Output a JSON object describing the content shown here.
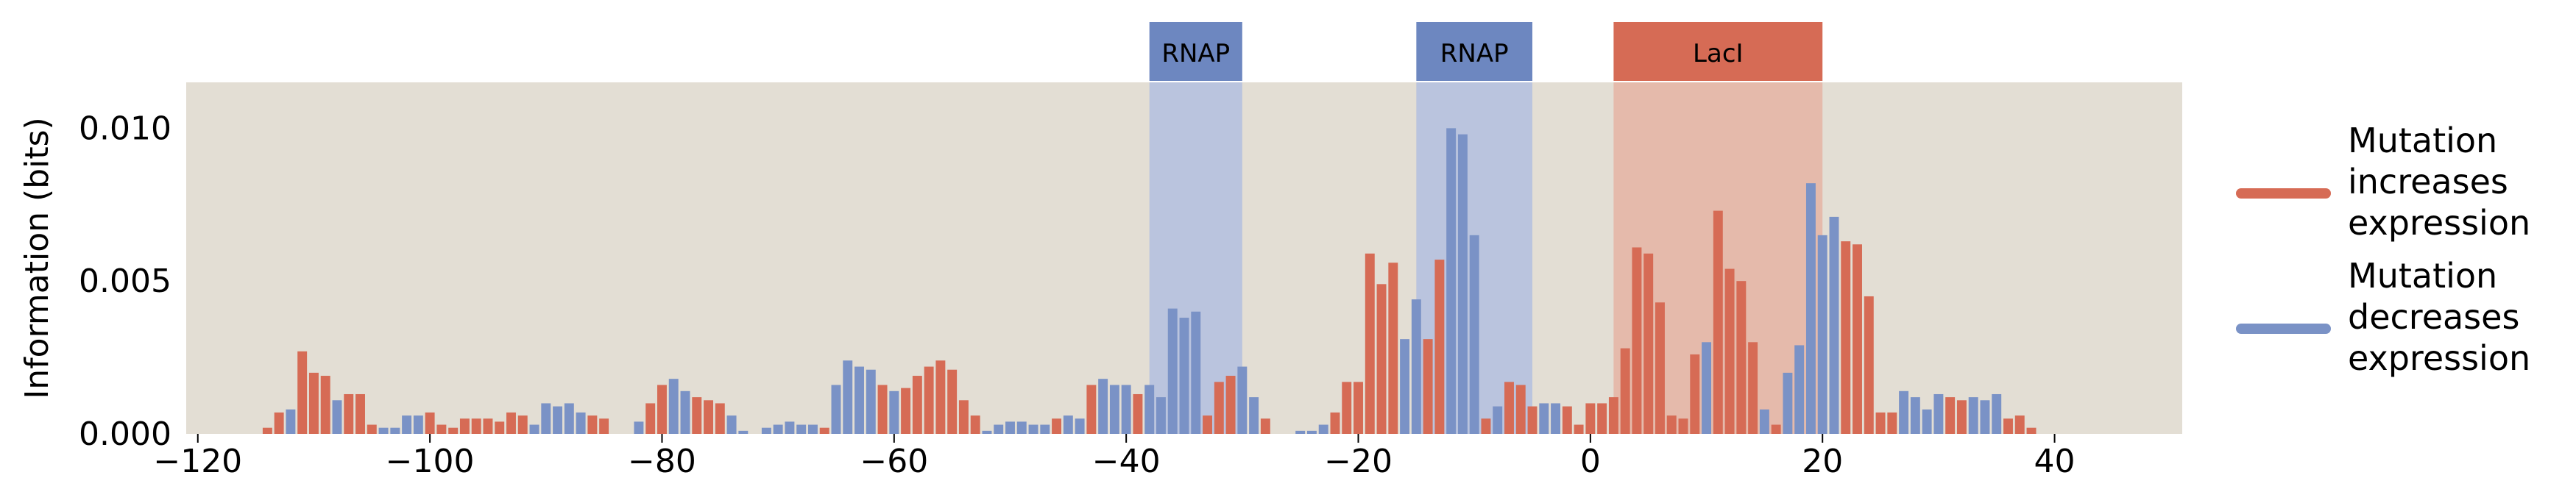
{
  "colors": {
    "background": "#e3ded4",
    "increase": "#d66b55",
    "decrease": "#7a92c6",
    "rnap_box": "#6d87c0",
    "rnap_shade": "#aebde0",
    "laci_box": "#d66b55",
    "laci_shade": "#e6b09f"
  },
  "chart_data": {
    "type": "bar",
    "ylabel": "Information (bits)",
    "xlim": [
      -121,
      51
    ],
    "ylim": [
      0,
      0.0115
    ],
    "xticks": [
      -120,
      -100,
      -80,
      -60,
      -40,
      -20,
      0,
      20,
      40
    ],
    "xtick_labels": [
      "−120",
      "−100",
      "−80",
      "−60",
      "−40",
      "−20",
      "0",
      "20",
      "40"
    ],
    "yticks": [
      0,
      0.005,
      0.01
    ],
    "ytick_labels": [
      "0.000",
      "0.005",
      "0.010"
    ],
    "grid": false,
    "legend_position": "right",
    "regions": [
      {
        "label": "RNAP",
        "kind": "rnap",
        "start": -38,
        "end": -30
      },
      {
        "label": "RNAP",
        "kind": "rnap",
        "start": -15,
        "end": -5
      },
      {
        "label": "LacI",
        "kind": "laci",
        "start": 2,
        "end": 20
      }
    ],
    "series": [
      {
        "name": "Mutation increases expression",
        "key": "increase"
      },
      {
        "name": "Mutation decreases expression",
        "key": "decrease"
      }
    ],
    "bars": [
      [
        -114,
        0.0002,
        "increase"
      ],
      [
        -113,
        0.0007,
        "increase"
      ],
      [
        -112,
        0.0008,
        "decrease"
      ],
      [
        -111,
        0.0027,
        "increase"
      ],
      [
        -110,
        0.002,
        "increase"
      ],
      [
        -109,
        0.0019,
        "increase"
      ],
      [
        -108,
        0.0011,
        "decrease"
      ],
      [
        -107,
        0.0013,
        "increase"
      ],
      [
        -106,
        0.0013,
        "increase"
      ],
      [
        -105,
        0.0003,
        "increase"
      ],
      [
        -104,
        0.0002,
        "decrease"
      ],
      [
        -103,
        0.0002,
        "decrease"
      ],
      [
        -102,
        0.0006,
        "decrease"
      ],
      [
        -101,
        0.0006,
        "decrease"
      ],
      [
        -100,
        0.0007,
        "increase"
      ],
      [
        -99,
        0.0003,
        "increase"
      ],
      [
        -98,
        0.0002,
        "increase"
      ],
      [
        -97,
        0.0005,
        "increase"
      ],
      [
        -96,
        0.0005,
        "increase"
      ],
      [
        -95,
        0.0005,
        "increase"
      ],
      [
        -94,
        0.0004,
        "increase"
      ],
      [
        -93,
        0.0007,
        "increase"
      ],
      [
        -92,
        0.0006,
        "increase"
      ],
      [
        -91,
        0.0003,
        "decrease"
      ],
      [
        -90,
        0.001,
        "decrease"
      ],
      [
        -89,
        0.0009,
        "decrease"
      ],
      [
        -88,
        0.001,
        "decrease"
      ],
      [
        -87,
        0.0007,
        "decrease"
      ],
      [
        -86,
        0.0006,
        "increase"
      ],
      [
        -85,
        0.0005,
        "increase"
      ],
      [
        -82,
        0.0004,
        "decrease"
      ],
      [
        -81,
        0.001,
        "increase"
      ],
      [
        -80,
        0.0016,
        "increase"
      ],
      [
        -79,
        0.0018,
        "decrease"
      ],
      [
        -78,
        0.0014,
        "decrease"
      ],
      [
        -77,
        0.0012,
        "increase"
      ],
      [
        -76,
        0.0011,
        "increase"
      ],
      [
        -75,
        0.001,
        "increase"
      ],
      [
        -74,
        0.0006,
        "decrease"
      ],
      [
        -73,
        0.0001,
        "decrease"
      ],
      [
        -71,
        0.0002,
        "decrease"
      ],
      [
        -70,
        0.0003,
        "decrease"
      ],
      [
        -69,
        0.0004,
        "decrease"
      ],
      [
        -68,
        0.0003,
        "decrease"
      ],
      [
        -67,
        0.0003,
        "decrease"
      ],
      [
        -66,
        0.0002,
        "increase"
      ],
      [
        -65,
        0.0016,
        "decrease"
      ],
      [
        -64,
        0.0024,
        "decrease"
      ],
      [
        -63,
        0.0022,
        "decrease"
      ],
      [
        -62,
        0.0021,
        "decrease"
      ],
      [
        -61,
        0.0016,
        "increase"
      ],
      [
        -60,
        0.0014,
        "decrease"
      ],
      [
        -59,
        0.0015,
        "increase"
      ],
      [
        -58,
        0.0019,
        "increase"
      ],
      [
        -57,
        0.0022,
        "increase"
      ],
      [
        -56,
        0.0024,
        "increase"
      ],
      [
        -55,
        0.0021,
        "increase"
      ],
      [
        -54,
        0.0011,
        "increase"
      ],
      [
        -53,
        0.0006,
        "increase"
      ],
      [
        -52,
        0.0001,
        "decrease"
      ],
      [
        -51,
        0.0003,
        "decrease"
      ],
      [
        -50,
        0.0004,
        "decrease"
      ],
      [
        -49,
        0.0004,
        "decrease"
      ],
      [
        -48,
        0.0003,
        "decrease"
      ],
      [
        -47,
        0.0003,
        "decrease"
      ],
      [
        -46,
        0.0005,
        "increase"
      ],
      [
        -45,
        0.0006,
        "decrease"
      ],
      [
        -44,
        0.0005,
        "decrease"
      ],
      [
        -43,
        0.0016,
        "increase"
      ],
      [
        -42,
        0.0018,
        "decrease"
      ],
      [
        -41,
        0.0016,
        "decrease"
      ],
      [
        -40,
        0.0016,
        "decrease"
      ],
      [
        -39,
        0.0013,
        "increase"
      ],
      [
        -38,
        0.0016,
        "decrease"
      ],
      [
        -37,
        0.0012,
        "decrease"
      ],
      [
        -36,
        0.0041,
        "decrease"
      ],
      [
        -35,
        0.0038,
        "decrease"
      ],
      [
        -34,
        0.004,
        "decrease"
      ],
      [
        -33,
        0.0006,
        "increase"
      ],
      [
        -32,
        0.0017,
        "increase"
      ],
      [
        -31,
        0.0019,
        "increase"
      ],
      [
        -30,
        0.0022,
        "decrease"
      ],
      [
        -29,
        0.0012,
        "decrease"
      ],
      [
        -28,
        0.0005,
        "increase"
      ],
      [
        -25,
        0.0001,
        "decrease"
      ],
      [
        -24,
        0.0001,
        "decrease"
      ],
      [
        -23,
        0.0003,
        "decrease"
      ],
      [
        -22,
        0.0007,
        "increase"
      ],
      [
        -21,
        0.0017,
        "increase"
      ],
      [
        -20,
        0.0017,
        "increase"
      ],
      [
        -19,
        0.0059,
        "increase"
      ],
      [
        -18,
        0.0049,
        "increase"
      ],
      [
        -17,
        0.0056,
        "increase"
      ],
      [
        -16,
        0.0031,
        "decrease"
      ],
      [
        -15,
        0.0044,
        "decrease"
      ],
      [
        -14,
        0.0031,
        "increase"
      ],
      [
        -13,
        0.0057,
        "increase"
      ],
      [
        -12,
        0.01,
        "decrease"
      ],
      [
        -11,
        0.0098,
        "decrease"
      ],
      [
        -10,
        0.0065,
        "decrease"
      ],
      [
        -9,
        0.0005,
        "increase"
      ],
      [
        -8,
        0.0009,
        "decrease"
      ],
      [
        -7,
        0.0017,
        "increase"
      ],
      [
        -6,
        0.0016,
        "increase"
      ],
      [
        -5,
        0.0009,
        "increase"
      ],
      [
        -4,
        0.001,
        "decrease"
      ],
      [
        -3,
        0.001,
        "decrease"
      ],
      [
        -2,
        0.0009,
        "increase"
      ],
      [
        -1,
        0.0003,
        "increase"
      ],
      [
        0,
        0.001,
        "increase"
      ],
      [
        1,
        0.001,
        "increase"
      ],
      [
        2,
        0.0012,
        "increase"
      ],
      [
        3,
        0.0028,
        "increase"
      ],
      [
        4,
        0.0061,
        "increase"
      ],
      [
        5,
        0.0059,
        "increase"
      ],
      [
        6,
        0.0043,
        "increase"
      ],
      [
        7,
        0.0006,
        "increase"
      ],
      [
        8,
        0.0005,
        "increase"
      ],
      [
        9,
        0.0026,
        "increase"
      ],
      [
        10,
        0.003,
        "decrease"
      ],
      [
        11,
        0.0073,
        "increase"
      ],
      [
        12,
        0.0054,
        "increase"
      ],
      [
        13,
        0.005,
        "increase"
      ],
      [
        14,
        0.003,
        "increase"
      ],
      [
        15,
        0.0008,
        "decrease"
      ],
      [
        16,
        0.0003,
        "increase"
      ],
      [
        17,
        0.002,
        "decrease"
      ],
      [
        18,
        0.0029,
        "decrease"
      ],
      [
        19,
        0.0082,
        "decrease"
      ],
      [
        20,
        0.0065,
        "decrease"
      ],
      [
        21,
        0.0071,
        "decrease"
      ],
      [
        22,
        0.0063,
        "increase"
      ],
      [
        23,
        0.0062,
        "increase"
      ],
      [
        24,
        0.0045,
        "increase"
      ],
      [
        25,
        0.0007,
        "increase"
      ],
      [
        26,
        0.0007,
        "increase"
      ],
      [
        27,
        0.0014,
        "decrease"
      ],
      [
        28,
        0.0012,
        "decrease"
      ],
      [
        29,
        0.0008,
        "decrease"
      ],
      [
        30,
        0.0013,
        "decrease"
      ],
      [
        31,
        0.0012,
        "increase"
      ],
      [
        32,
        0.0011,
        "increase"
      ],
      [
        33,
        0.0012,
        "decrease"
      ],
      [
        34,
        0.0011,
        "decrease"
      ],
      [
        35,
        0.0013,
        "decrease"
      ],
      [
        36,
        0.0005,
        "increase"
      ],
      [
        37,
        0.0006,
        "increase"
      ],
      [
        38,
        0.0002,
        "increase"
      ]
    ]
  }
}
